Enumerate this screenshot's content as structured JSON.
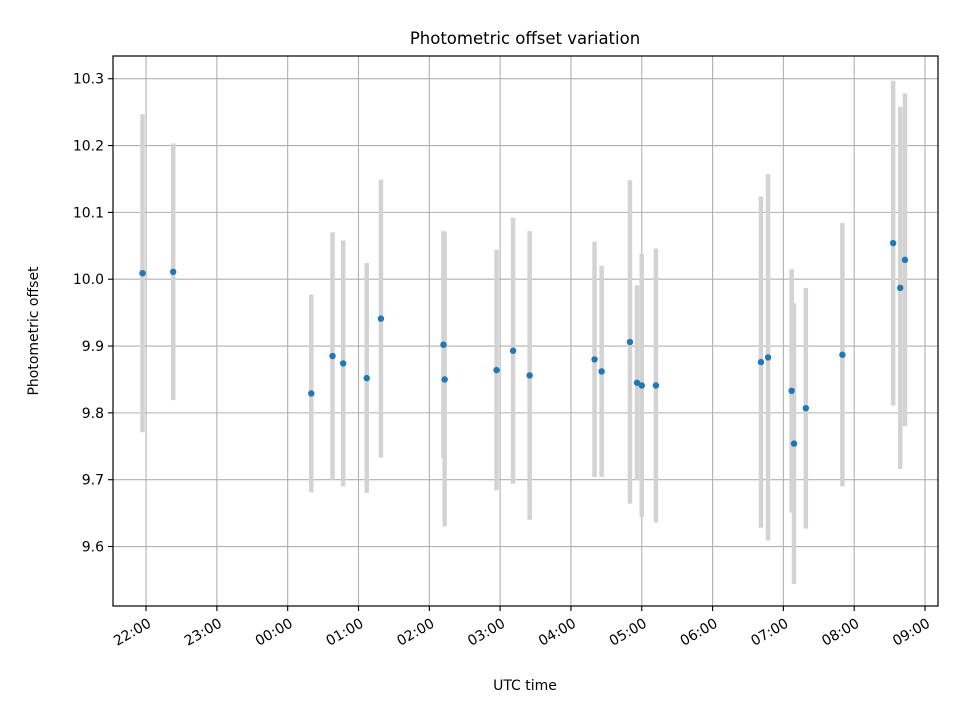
{
  "chart_data": {
    "type": "scatter",
    "title": "Photometric offset variation",
    "xlabel": "UTC time",
    "ylabel": "Photometric offset",
    "x_ticks": [
      "22:00",
      "23:00",
      "00:00",
      "01:00",
      "02:00",
      "03:00",
      "04:00",
      "05:00",
      "06:00",
      "07:00",
      "08:00",
      "09:00"
    ],
    "y_ticks": [
      "9.6",
      "9.7",
      "9.8",
      "9.9",
      "10.0",
      "10.1",
      "10.2",
      "10.3"
    ],
    "xlim": [
      "21:32",
      "09:11"
    ],
    "ylim": [
      9.511,
      10.334
    ],
    "grid": true,
    "series": [
      {
        "points": [
          {
            "t": "21:57",
            "y": 10.009,
            "err": 0.238
          },
          {
            "t": "22:23",
            "y": 10.011,
            "err": 0.192
          },
          {
            "t": "00:20",
            "y": 9.829,
            "err": 0.148
          },
          {
            "t": "00:38",
            "y": 9.885,
            "err": 0.185
          },
          {
            "t": "00:47",
            "y": 9.874,
            "err": 0.184
          },
          {
            "t": "01:07",
            "y": 9.852,
            "err": 0.172
          },
          {
            "t": "01:19",
            "y": 9.941,
            "err": 0.208
          },
          {
            "t": "02:12",
            "y": 9.902,
            "err": 0.17
          },
          {
            "t": "02:13",
            "y": 9.85,
            "err": 0.22
          },
          {
            "t": "02:57",
            "y": 9.864,
            "err": 0.18
          },
          {
            "t": "03:11",
            "y": 9.893,
            "err": 0.199
          },
          {
            "t": "03:25",
            "y": 9.856,
            "err": 0.216
          },
          {
            "t": "04:20",
            "y": 9.88,
            "err": 0.176
          },
          {
            "t": "04:26",
            "y": 9.862,
            "err": 0.158
          },
          {
            "t": "04:50",
            "y": 9.906,
            "err": 0.242
          },
          {
            "t": "04:56",
            "y": 9.845,
            "err": 0.146
          },
          {
            "t": "05:00",
            "y": 9.841,
            "err": 0.197
          },
          {
            "t": "05:12",
            "y": 9.841,
            "err": 0.205
          },
          {
            "t": "06:41",
            "y": 9.876,
            "err": 0.248
          },
          {
            "t": "06:47",
            "y": 9.883,
            "err": 0.274
          },
          {
            "t": "07:07",
            "y": 9.833,
            "err": 0.182
          },
          {
            "t": "07:09",
            "y": 9.754,
            "err": 0.21
          },
          {
            "t": "07:19",
            "y": 9.807,
            "err": 0.18
          },
          {
            "t": "07:50",
            "y": 9.887,
            "err": 0.197
          },
          {
            "t": "08:33",
            "y": 10.054,
            "err": 0.243
          },
          {
            "t": "08:39",
            "y": 9.987,
            "err": 0.271
          },
          {
            "t": "08:43",
            "y": 10.029,
            "err": 0.249
          }
        ]
      }
    ],
    "colors": {
      "marker": "#1f77b4",
      "errorbar": "#d3d3d3",
      "grid": "#b0b0b0"
    }
  }
}
